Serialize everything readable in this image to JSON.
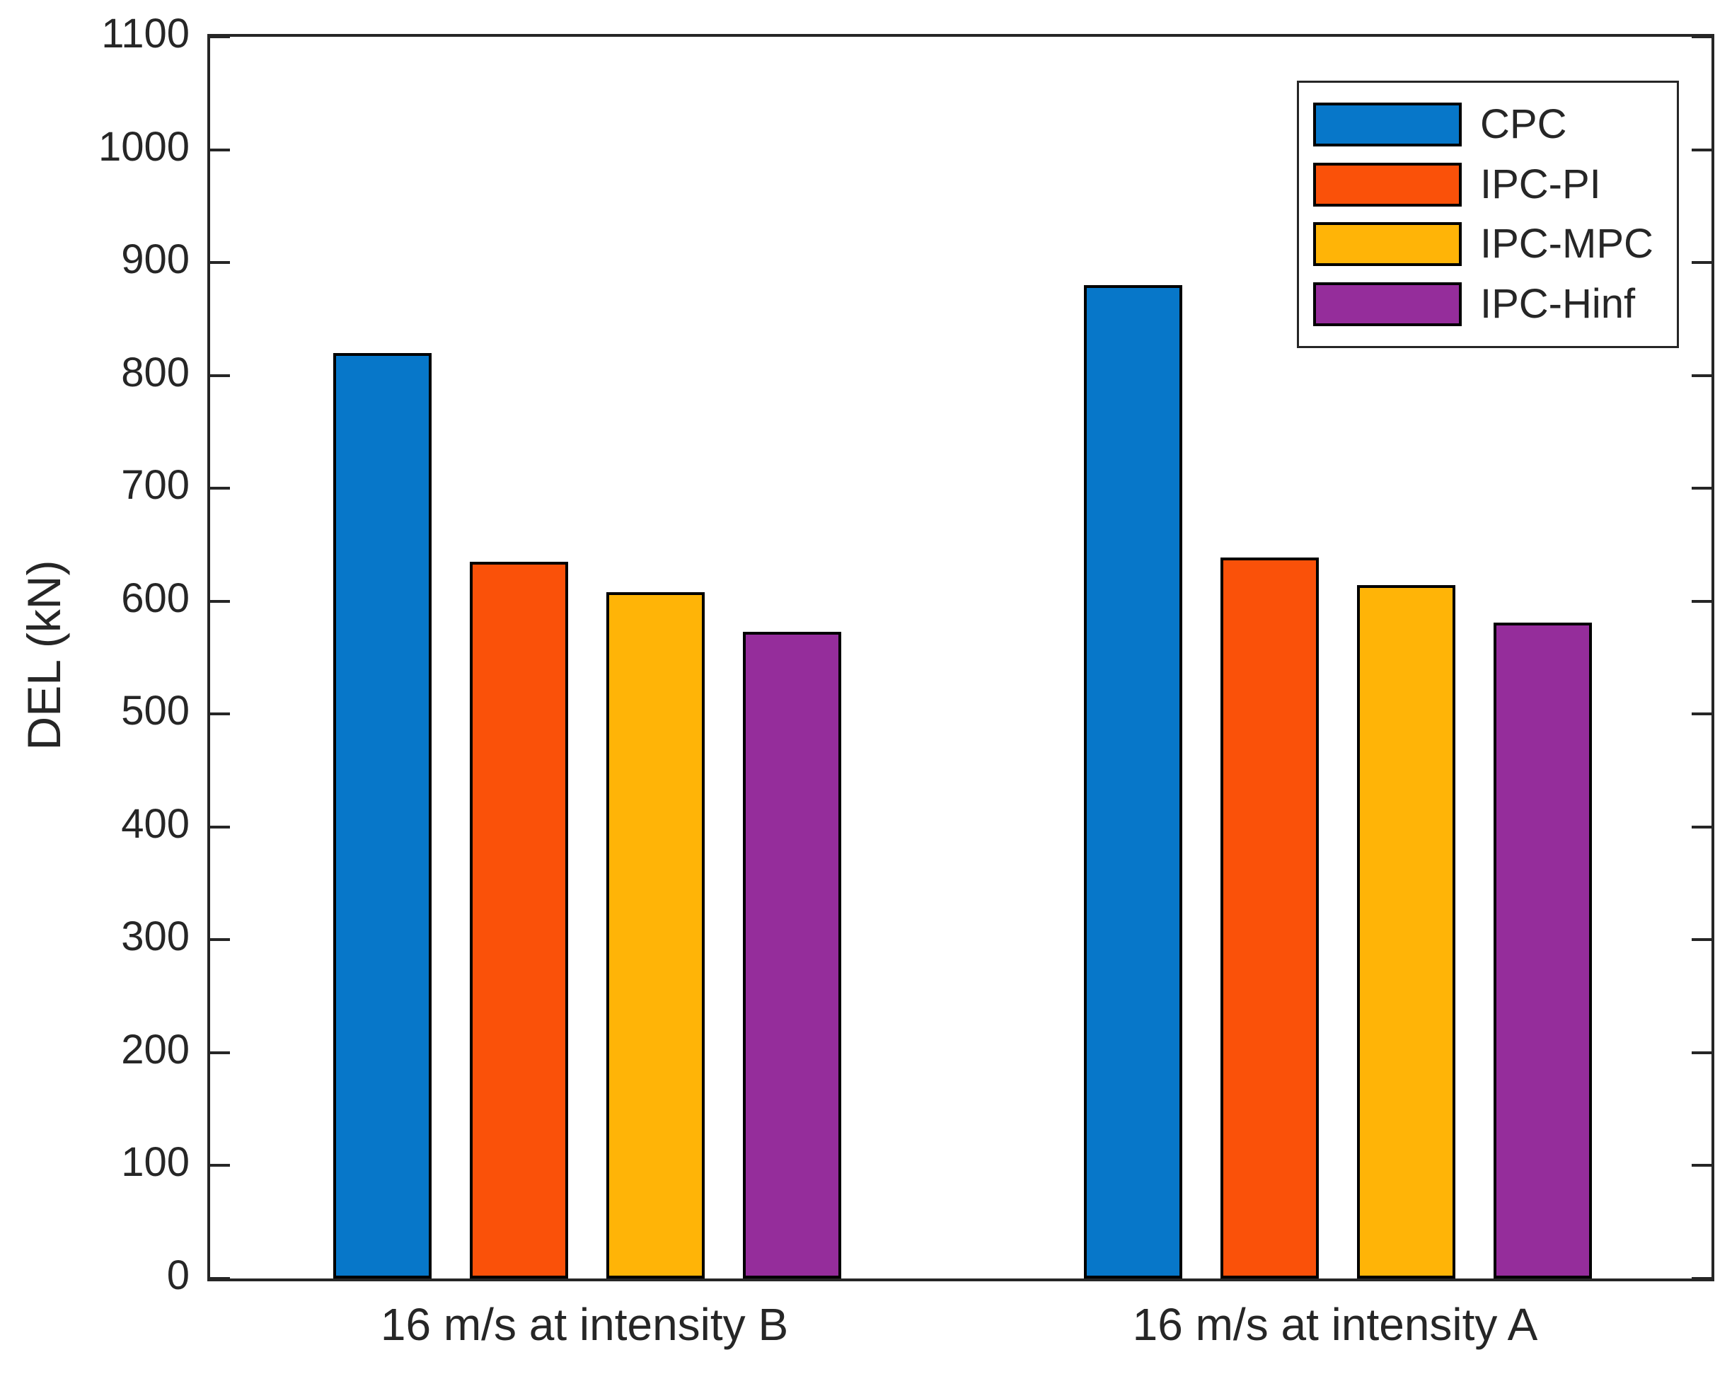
{
  "chart_data": {
    "type": "bar",
    "title": "",
    "xlabel": "",
    "ylabel": "DEL (kN)",
    "categories": [
      "16 m/s at intensity B",
      "16 m/s at intensity A"
    ],
    "series": [
      {
        "name": "CPC",
        "color": "#0777C9",
        "values": [
          820,
          880
        ]
      },
      {
        "name": "IPC-PI",
        "color": "#FA5109",
        "values": [
          635,
          639
        ]
      },
      {
        "name": "IPC-MPC",
        "color": "#FFB407",
        "values": [
          608,
          614
        ]
      },
      {
        "name": "IPC-Hinf",
        "color": "#952D9B",
        "values": [
          573,
          581
        ]
      }
    ],
    "ylim": [
      0,
      1100
    ],
    "ytick_step": 100,
    "yticks": [
      0,
      100,
      200,
      300,
      400,
      500,
      600,
      700,
      800,
      900,
      1000,
      1100
    ],
    "grid": false,
    "legend_position": "top-right",
    "axis_color": "#262626",
    "bar_edge_color": "#000000",
    "background_color": "#ffffff"
  }
}
